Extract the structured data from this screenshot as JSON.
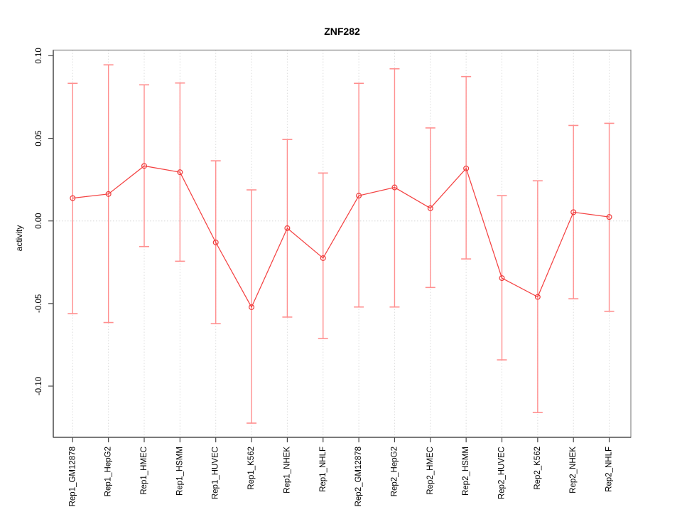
{
  "title": "ZNF282",
  "axes": {
    "y_label": "activity"
  },
  "chart_data": {
    "type": "line",
    "title": "ZNF282",
    "xlabel": "",
    "ylabel": "activity",
    "legend": "none",
    "grid": {
      "vertical": "dotted",
      "horizontal": "zero-line-only"
    },
    "categories": [
      "Rep1_GM12878",
      "Rep1_HepG2",
      "Rep1_HMEC",
      "Rep1_HSMM",
      "Rep1_HUVEC",
      "Rep1_K562",
      "Rep1_NHEK",
      "Rep1_NHLF",
      "Rep2_GM12878",
      "Rep2_HepG2",
      "Rep2_HMEC",
      "Rep2_HSMM",
      "Rep2_HUVEC",
      "Rep2_K562",
      "Rep2_NHEK",
      "Rep2_NHLF"
    ],
    "series": [
      {
        "name": "activity",
        "values": [
          0.0138,
          0.0163,
          0.0333,
          0.0295,
          -0.013,
          -0.0522,
          -0.0044,
          -0.0225,
          0.0153,
          0.0203,
          0.0077,
          0.0318,
          -0.0346,
          -0.046,
          0.0053,
          0.0024
        ],
        "upper": [
          0.0833,
          0.0945,
          0.0824,
          0.0835,
          0.0364,
          0.0188,
          0.0493,
          0.029,
          0.0833,
          0.0921,
          0.0563,
          0.0874,
          0.0153,
          0.0243,
          0.0578,
          0.0591
        ],
        "lower": [
          -0.0561,
          -0.0615,
          -0.0155,
          -0.0244,
          -0.0622,
          -0.1224,
          -0.0582,
          -0.0712,
          -0.0521,
          -0.0521,
          -0.0403,
          -0.023,
          -0.0841,
          -0.116,
          -0.0471,
          -0.0547
        ]
      }
    ],
    "ylim": [
      -0.131,
      0.1034
    ],
    "yticks": {
      "values": [
        0.1,
        0.05,
        0.0,
        -0.05,
        -0.1
      ],
      "labels": [
        "0.10",
        "0.05",
        "0.00",
        "-0.05",
        "-0.10"
      ]
    },
    "zero_line": 0,
    "colors": {
      "line": "#f44242",
      "marker": "#ee3b3b",
      "error_bar": "#ff8f8f",
      "grid": "#dcdcdc",
      "zero_line": "#d4d4d4",
      "box": "#999999",
      "axis": "#444444",
      "text": "#000000"
    }
  }
}
